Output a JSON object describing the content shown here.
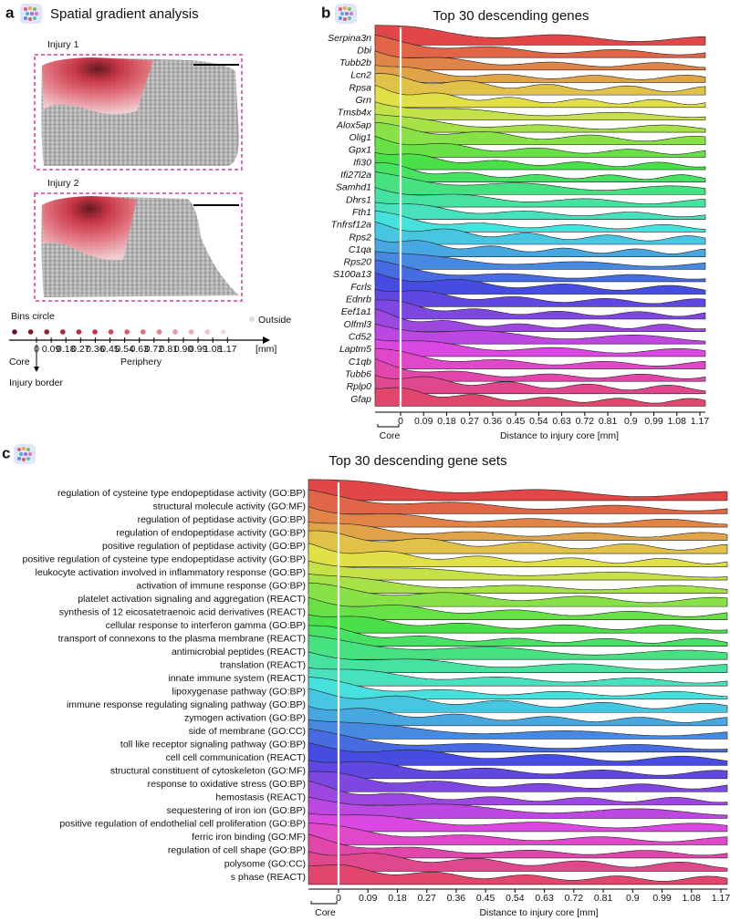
{
  "panel_a": {
    "label": "a",
    "title": "Spatial gradient analysis",
    "injury_labels": [
      "Injury 1",
      "Injury 2"
    ],
    "legend_title": "Bins circle",
    "outside_label": "Outside",
    "ticks": [
      "0",
      "0.09",
      "0.18",
      "0.27",
      "0.36",
      "0.45",
      "0.54",
      "0.63",
      "0.72",
      "0.81",
      "0.90",
      "0.99",
      "1.08",
      "1.17"
    ],
    "unit": "[mm]",
    "core_label": "Core",
    "periphery_label": "Periphery",
    "border_label": "Injury border"
  },
  "panel_b": {
    "label": "b",
    "title": "Top 30 descending genes",
    "rows": [
      "Serpina3n",
      "Dbi",
      "Tubb2b",
      "Lcn2",
      "Rpsa",
      "Grn",
      "Tmsb4x",
      "Alox5ap",
      "Olig1",
      "Gpx1",
      "Ifi30",
      "Ifi27l2a",
      "Samhd1",
      "Dhrs1",
      "Fth1",
      "Tnfrsf12a",
      "Rps2",
      "C1qa",
      "Rps20",
      "S100a13",
      "Fcrls",
      "Ednrb",
      "Eef1a1",
      "Olfml3",
      "Cd52",
      "Laptm5",
      "C1qb",
      "Tubb6",
      "Rplp0",
      "Gfap"
    ],
    "ticks": [
      "0",
      "0.09",
      "0.18",
      "0.27",
      "0.36",
      "0.45",
      "0.54",
      "0.63",
      "0.72",
      "0.81",
      "0.9",
      "0.99",
      "1.08",
      "1.17"
    ],
    "x_label": "Distance to injury core [mm]",
    "core_label": "Core"
  },
  "panel_c": {
    "label": "c",
    "title": "Top 30 descending gene sets",
    "rows": [
      "regulation of cysteine type endopeptidase activity (GO:BP)",
      "structural molecule activity (GO:MF)",
      "regulation of peptidase activity (GO:BP)",
      "regulation of endopeptidase activity (GO:BP)",
      "positive regulation of peptidase activity (GO:BP)",
      "positive regulation of cysteine type endopeptidase activity (GO:BP)",
      "leukocyte activation involved in inflammatory response (GO:BP)",
      "activation of immune response (GO:BP)",
      "platelet activation signaling and aggregation (REACT)",
      "synthesis of 12 eicosatetraenoic acid derivatives (REACT)",
      "cellular response to interferon gamma (GO:BP)",
      "transport of connexons to the plasma membrane (REACT)",
      "antimicrobial peptides (REACT)",
      "translation (REACT)",
      "innate immune system (REACT)",
      "lipoxygenase pathway (GO:BP)",
      "immune response regulating signaling pathway (GO:BP)",
      "zymogen activation (GO:BP)",
      "side of membrane (GO:CC)",
      "toll like receptor signaling pathway (GO:BP)",
      "cell cell communication (REACT)",
      "structural constituent of cytoskeleton (GO:MF)",
      "response to oxidative stress (GO:BP)",
      "hemostasis (REACT)",
      "sequestering of iron ion (GO:BP)",
      "positive regulation of endothelial cell proliferation (GO:BP)",
      "ferric iron binding (GO:MF)",
      "regulation of cell shape (GO:BP)",
      "polysome (GO:CC)",
      "s phase (REACT)"
    ],
    "ticks": [
      "0",
      "0.09",
      "0.18",
      "0.27",
      "0.36",
      "0.45",
      "0.54",
      "0.63",
      "0.72",
      "0.81",
      "0.9",
      "0.99",
      "1.08",
      "1.17"
    ],
    "x_label": "Distance to injury core [mm]",
    "core_label": "Core"
  }
}
